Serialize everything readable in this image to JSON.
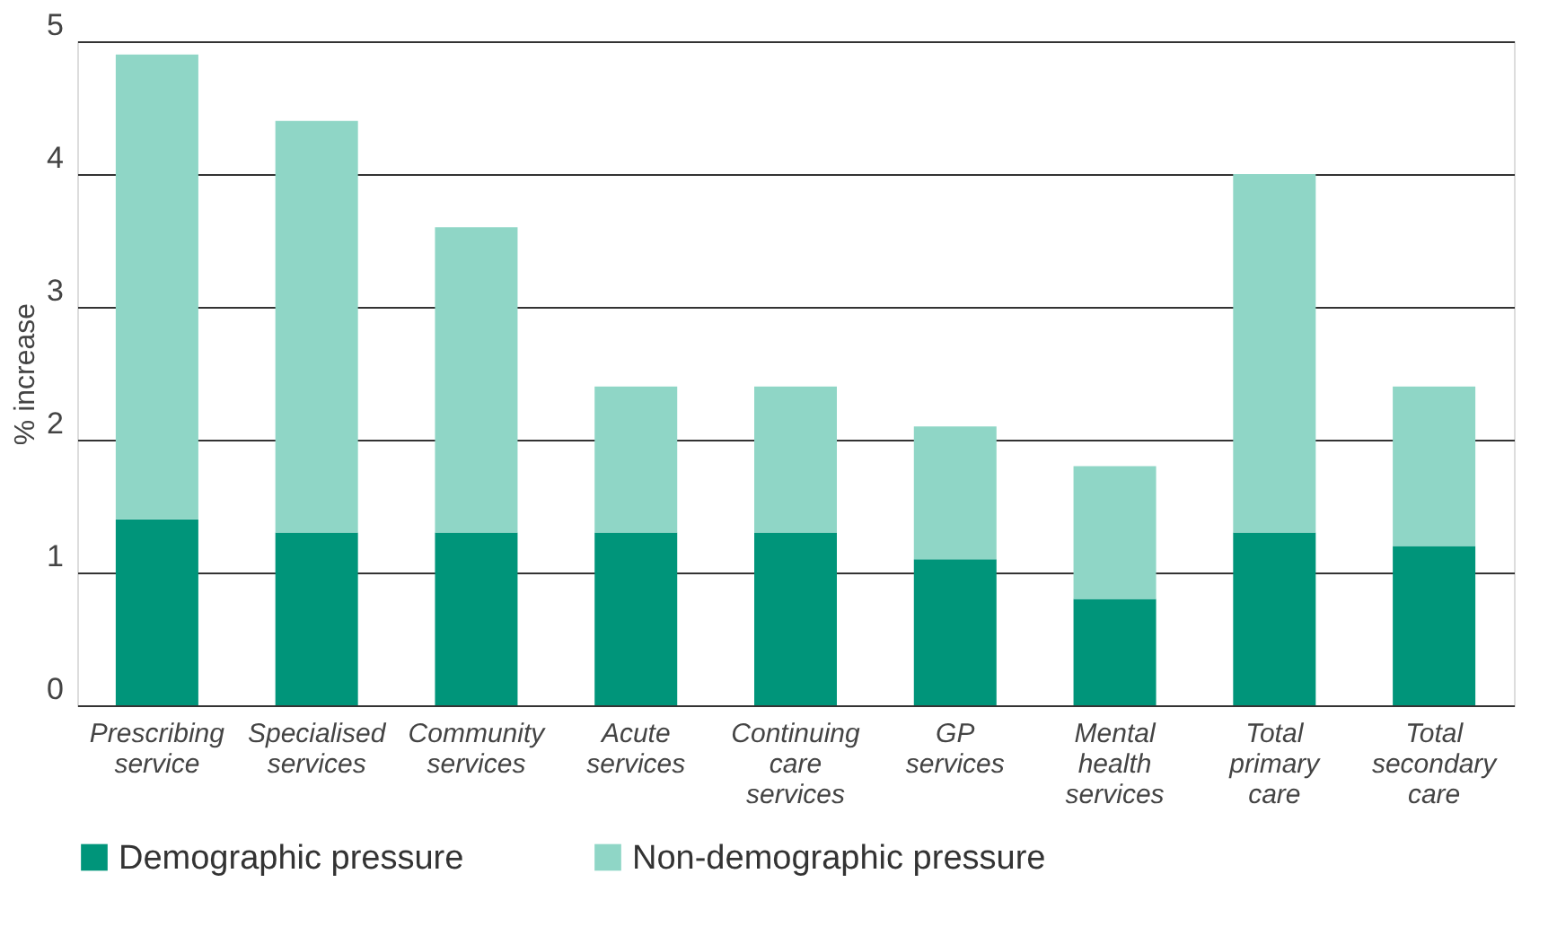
{
  "chart_data": {
    "type": "bar",
    "stacked": true,
    "ylabel": "% increase",
    "categories": [
      "Prescribing service",
      "Specialised services",
      "Community services",
      "Acute services",
      "Continuing care services",
      "GP services",
      "Mental health services",
      "Total primary care",
      "Total secondary care"
    ],
    "series": [
      {
        "name": "Demographic pressure",
        "color": "#00957a",
        "values": [
          1.4,
          1.3,
          1.3,
          1.3,
          1.3,
          1.1,
          0.8,
          1.3,
          1.2
        ]
      },
      {
        "name": "Non-demographic pressure",
        "color": "#8fd6c6",
        "values": [
          3.5,
          3.1,
          2.3,
          1.1,
          1.1,
          1.0,
          1.0,
          2.7,
          1.2
        ]
      }
    ],
    "ylim": [
      0,
      5
    ],
    "yticks": [
      0,
      1,
      2,
      3,
      4,
      5
    ],
    "grid": "y",
    "legend": "bottom"
  }
}
